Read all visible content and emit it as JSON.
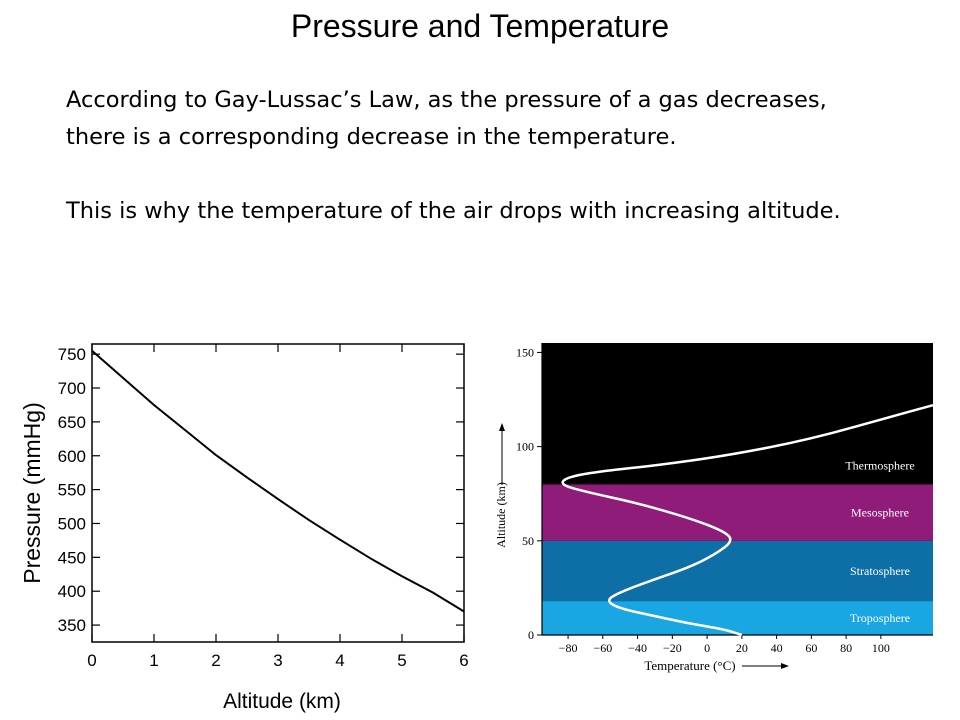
{
  "slide": {
    "title": "Pressure and Temperature",
    "paragraph1": "According to Gay-Lussac’s Law, as the pressure of a gas decreases, there is a corresponding decrease in the temperature.",
    "paragraph2": "This is why the temperature of the air drops with increasing altitude."
  },
  "chart_data": [
    {
      "type": "line",
      "xlabel": "Altitude (km)",
      "ylabel": "Pressure (mmHg)",
      "xlim": [
        0,
        6
      ],
      "ylim": [
        325,
        765
      ],
      "x_ticks": [
        "0",
        "1",
        "2",
        "3",
        "4",
        "5",
        "6"
      ],
      "y_ticks": [
        "350",
        "400",
        "450",
        "500",
        "550",
        "600",
        "650",
        "700",
        "750"
      ],
      "series": [
        {
          "color": "#000000",
          "x": [
            0,
            0.5,
            1,
            1.5,
            2,
            2.5,
            3,
            3.5,
            4,
            4.5,
            5,
            5.5,
            6
          ],
          "y": [
            755,
            715,
            675,
            638,
            601,
            568,
            536,
            505,
            476,
            448,
            422,
            398,
            370
          ]
        }
      ],
      "grid": false
    },
    {
      "type": "line",
      "xlabel": "Temperature (°C)",
      "ylabel": "Altitude (km)",
      "xlim": [
        -95,
        130
      ],
      "ylim": [
        0,
        155
      ],
      "x_ticks": [
        "−80",
        "−60",
        "−40",
        "−20",
        "0",
        "20",
        "40",
        "60",
        "80",
        "100"
      ],
      "y_ticks": [
        "0",
        "50",
        "100",
        "150"
      ],
      "layers": [
        {
          "name": "Troposphere",
          "from": 0,
          "to": 18,
          "color": "#1aa6e2"
        },
        {
          "name": "Stratosphere",
          "from": 18,
          "to": 50,
          "color": "#0e6ea6"
        },
        {
          "name": "Mesosphere",
          "from": 50,
          "to": 80,
          "color": "#8e1c78"
        },
        {
          "name": "Thermosphere",
          "from": 80,
          "to": 155,
          "color": "#000000"
        }
      ],
      "series": [
        {
          "color": "#ffffff",
          "x": [
            20,
            10,
            -10,
            -30,
            -50,
            -58,
            -52,
            -35,
            -10,
            5,
            15,
            10,
            -10,
            -40,
            -70,
            -85,
            -80,
            -60,
            -30,
            10,
            60,
            110,
            130
          ],
          "y": [
            0,
            3,
            6,
            10,
            14,
            18,
            22,
            28,
            36,
            43,
            50,
            55,
            62,
            70,
            76,
            80,
            84,
            87,
            90,
            95,
            104,
            117,
            122
          ]
        }
      ],
      "background": "#000000",
      "grid": false
    }
  ]
}
